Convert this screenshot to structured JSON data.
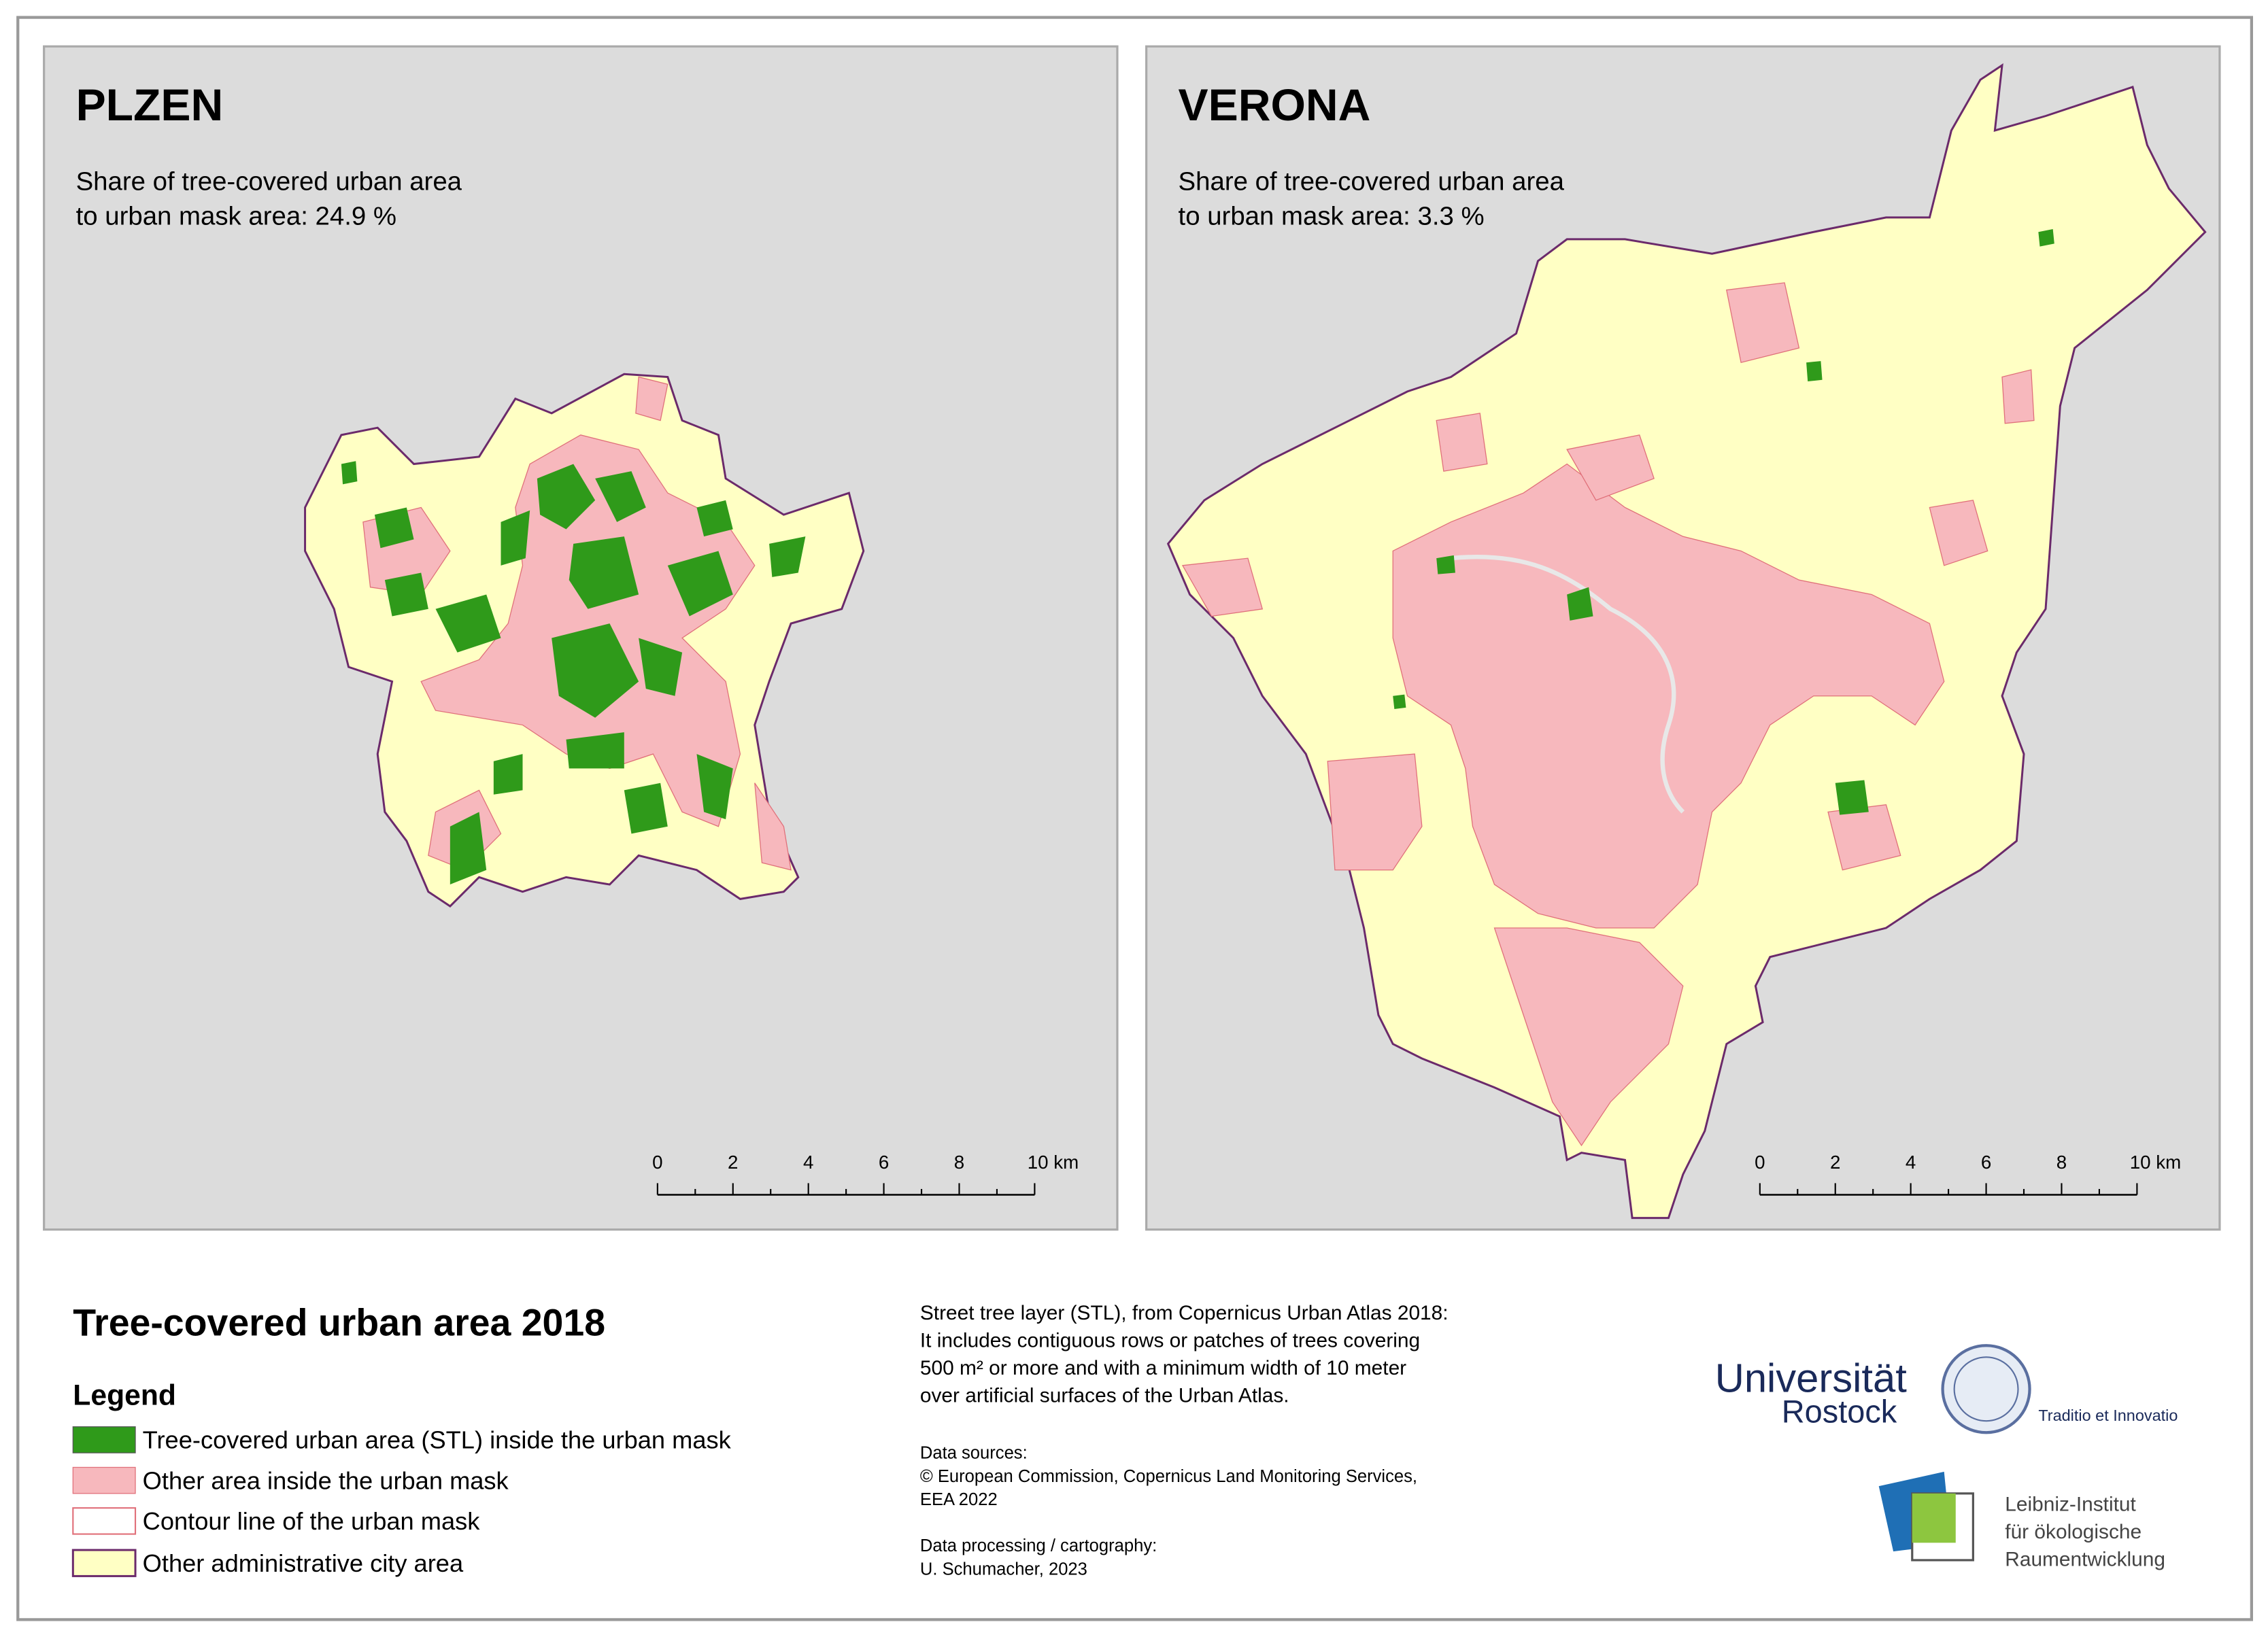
{
  "panels": [
    {
      "title": "PLZEN",
      "share_line1": "Share of tree-covered urban area",
      "share_line2": "to urban mask area: 24.9 %",
      "scale_labels": [
        "0",
        "2",
        "4",
        "6",
        "8",
        "10 km"
      ]
    },
    {
      "title": "VERONA",
      "share_line1": "Share of tree-covered urban area",
      "share_line2": "to urban mask area: 3.3 %",
      "scale_labels": [
        "0",
        "2",
        "4",
        "6",
        "8",
        "10 km"
      ]
    }
  ],
  "legend": {
    "main_title": "Tree-covered urban area 2018",
    "title": "Legend",
    "items": [
      "Tree-covered urban area (STL) inside the urban mask",
      "Other area inside the urban mask",
      "Contour line of the urban mask",
      "Other administrative city area"
    ]
  },
  "notes": {
    "description": [
      "Street tree layer (STL), from Copernicus Urban Atlas 2018:",
      "It includes contiguous rows or patches of trees covering",
      "500 m² or more and with a minimum width of 10 meter",
      "over artificial surfaces of the Urban Atlas."
    ],
    "sources": [
      "Data sources:",
      "© European Commission, Copernicus Land Monitoring Services,",
      "EEA 2022"
    ],
    "processing": [
      "Data processing / cartography:",
      "U. Schumacher, 2023"
    ]
  },
  "logos": {
    "university": "Universität",
    "university_city": "Rostock",
    "motto": "Traditio et Innovatio",
    "leibniz": [
      "Leibniz-Institut",
      "für ökologische",
      "Raumentwicklung"
    ]
  }
}
